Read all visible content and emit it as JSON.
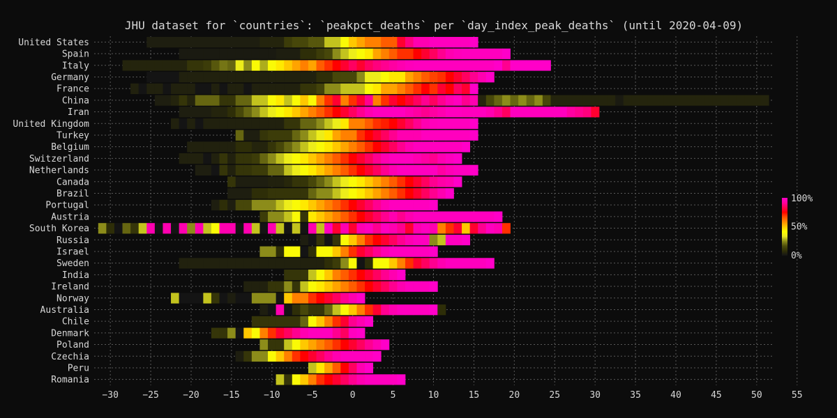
{
  "chart_data": {
    "type": "heatmap",
    "title": "JHU dataset for `countries`: `peakpct_deaths` per `day_index_peak_deaths` (until 2020-04-09)",
    "xlabel": "",
    "ylabel": "",
    "xlim": [
      -32,
      52
    ],
    "xticks": [
      -30,
      -25,
      -20,
      -15,
      -10,
      -5,
      0,
      5,
      10,
      15,
      20,
      25,
      30,
      35,
      40,
      45,
      50,
      55
    ],
    "grid": true,
    "legend": "colorbar-right",
    "colorbar": {
      "min_label": "0%",
      "mid_label": "50%",
      "max_label": "100%",
      "stops": [
        "#141414",
        "#2f2f08",
        "#4d4d0b",
        "#8c8c1a",
        "#e8e820",
        "#ffff00",
        "#ffc800",
        "#ff8c00",
        "#ff5000",
        "#ff0000",
        "#ff0050",
        "#ff00a0",
        "#ff00c8"
      ]
    },
    "colors": {
      "background": "#0c0c0c",
      "text": "#d8d8d8",
      "grid": "#5a5a5a"
    },
    "rows": [
      {
        "name": "United States",
        "start": -25,
        "values": [
          3,
          3,
          3,
          3,
          3,
          3,
          3,
          3,
          3,
          3,
          3,
          3,
          3,
          3,
          5,
          5,
          5,
          12,
          15,
          15,
          18,
          18,
          30,
          30,
          40,
          50,
          55,
          60,
          60,
          65,
          65,
          80,
          88,
          95,
          95,
          98,
          98,
          98,
          98,
          98,
          100
        ]
      },
      {
        "name": "Spain",
        "start": -21,
        "values": [
          2,
          2,
          2,
          2,
          2,
          2,
          2,
          2,
          2,
          2,
          2,
          2,
          3,
          3,
          3,
          8,
          8,
          12,
          15,
          25,
          30,
          35,
          40,
          45,
          55,
          60,
          65,
          70,
          70,
          75,
          80,
          85,
          90,
          95,
          97,
          98,
          98,
          98,
          98,
          98,
          100
        ]
      },
      {
        "name": "Italy",
        "start": -28,
        "values": [
          5,
          5,
          5,
          5,
          5,
          5,
          5,
          5,
          10,
          10,
          12,
          18,
          22,
          20,
          35,
          25,
          40,
          28,
          40,
          45,
          50,
          55,
          60,
          55,
          65,
          70,
          75,
          80,
          85,
          80,
          85,
          88,
          90,
          92,
          95,
          97,
          98,
          98,
          98,
          98,
          98,
          98,
          98,
          98,
          98,
          98,
          100,
          90,
          100,
          100,
          100,
          100,
          100
        ]
      },
      {
        "name": "Germany",
        "start": -25,
        "values": [
          0,
          0,
          0,
          0,
          4,
          4,
          4,
          4,
          4,
          4,
          4,
          4,
          4,
          4,
          4,
          4,
          4,
          4,
          4,
          4,
          4,
          8,
          8,
          15,
          15,
          15,
          25,
          35,
          35,
          40,
          45,
          45,
          55,
          60,
          65,
          68,
          70,
          75,
          80,
          85,
          90,
          95,
          100
        ]
      },
      {
        "name": "France",
        "start": -27,
        "values": [
          4,
          0,
          4,
          4,
          0,
          4,
          4,
          4,
          0,
          0,
          4,
          0,
          4,
          4,
          0,
          4,
          4,
          4,
          4,
          4,
          4,
          10,
          10,
          14,
          25,
          25,
          30,
          30,
          30,
          40,
          45,
          55,
          55,
          60,
          65,
          70,
          75,
          70,
          80,
          75,
          85,
          80,
          100
        ]
      },
      {
        "name": "China",
        "start": -24,
        "values": [
          3,
          3,
          5,
          10,
          5,
          20,
          20,
          20,
          10,
          10,
          20,
          20,
          30,
          30,
          40,
          45,
          30,
          40,
          50,
          40,
          60,
          70,
          80,
          60,
          70,
          80,
          90,
          60,
          70,
          80,
          75,
          80,
          85,
          90,
          85,
          90,
          95,
          98,
          90,
          95,
          5,
          15,
          20,
          25,
          20,
          25,
          20,
          25,
          15,
          5,
          5,
          5,
          5,
          5,
          5,
          5,
          5,
          2,
          5,
          5,
          5,
          5,
          5,
          5,
          5,
          5,
          5,
          5,
          5,
          5,
          5,
          5,
          5,
          5,
          5,
          5,
          5,
          5,
          5,
          5,
          5,
          5,
          5,
          5,
          5,
          5,
          2,
          5,
          5
        ]
      },
      {
        "name": "Iran",
        "start": -21,
        "values": [
          3,
          3,
          3,
          3,
          5,
          5,
          8,
          15,
          20,
          25,
          30,
          35,
          40,
          45,
          50,
          55,
          60,
          65,
          70,
          75,
          80,
          85,
          90,
          95,
          98,
          98,
          98,
          98,
          95,
          92,
          90,
          92,
          95,
          98,
          98,
          97,
          98,
          98,
          95,
          90,
          85,
          98,
          98,
          98,
          98,
          98,
          98,
          98,
          92,
          90,
          88,
          80
        ]
      },
      {
        "name": "United Kingdom",
        "start": -22,
        "values": [
          4,
          0,
          4,
          0,
          4,
          4,
          4,
          4,
          4,
          4,
          4,
          4,
          4,
          4,
          10,
          10,
          20,
          20,
          25,
          30,
          35,
          45,
          60,
          60,
          65,
          70,
          72,
          75,
          80,
          85,
          90,
          95,
          97,
          98,
          98,
          98,
          98,
          100
        ]
      },
      {
        "name": "Turkey",
        "start": -14,
        "values": [
          20,
          3,
          3,
          10,
          12,
          12,
          12,
          20,
          25,
          30,
          35,
          45,
          55,
          60,
          60,
          70,
          75,
          80,
          85,
          90,
          95,
          95,
          95,
          98,
          98,
          98,
          98,
          98,
          98,
          100
        ]
      },
      {
        "name": "Belgium",
        "start": -20,
        "values": [
          4,
          4,
          4,
          4,
          4,
          4,
          8,
          8,
          5,
          5,
          10,
          15,
          20,
          25,
          30,
          35,
          40,
          45,
          50,
          55,
          60,
          65,
          70,
          75,
          80,
          85,
          90,
          95,
          98,
          98,
          98,
          98,
          98,
          98,
          100
        ]
      },
      {
        "name": "Switzerland",
        "start": -21,
        "values": [
          4,
          4,
          4,
          0,
          4,
          10,
          4,
          10,
          10,
          12,
          20,
          25,
          30,
          35,
          40,
          45,
          50,
          55,
          60,
          65,
          70,
          75,
          80,
          85,
          90,
          95,
          98,
          98,
          98,
          95,
          92,
          90,
          95,
          98,
          100
        ]
      },
      {
        "name": "Netherlands",
        "start": -19,
        "values": [
          3,
          3,
          0,
          10,
          4,
          10,
          10,
          12,
          12,
          20,
          20,
          30,
          35,
          40,
          45,
          50,
          55,
          60,
          65,
          70,
          75,
          80,
          85,
          90,
          95,
          98,
          98,
          98,
          98,
          98,
          92,
          96,
          98,
          98,
          100
        ]
      },
      {
        "name": "Canada",
        "start": -15,
        "values": [
          10,
          3,
          3,
          3,
          3,
          4,
          4,
          6,
          10,
          10,
          15,
          20,
          25,
          30,
          35,
          40,
          45,
          50,
          55,
          60,
          65,
          70,
          75,
          80,
          85,
          90,
          93,
          95,
          100
        ]
      },
      {
        "name": "Brazil",
        "start": -15,
        "values": [
          3,
          3,
          3,
          8,
          8,
          10,
          10,
          10,
          10,
          10,
          20,
          25,
          25,
          30,
          35,
          40,
          45,
          50,
          55,
          60,
          65,
          70,
          75,
          80,
          85,
          90,
          95,
          100
        ]
      },
      {
        "name": "Portugal",
        "start": -17,
        "values": [
          3,
          8,
          3,
          15,
          15,
          25,
          25,
          25,
          30,
          35,
          40,
          45,
          50,
          55,
          60,
          65,
          70,
          75,
          80,
          85,
          90,
          95,
          98,
          98,
          98,
          98,
          98,
          100
        ]
      },
      {
        "name": "Austria",
        "start": -11,
        "values": [
          12,
          25,
          25,
          30,
          40,
          10,
          45,
          50,
          55,
          60,
          65,
          70,
          75,
          80,
          85,
          90,
          95,
          90,
          95,
          98,
          98,
          98,
          98,
          98,
          98,
          98,
          98,
          98,
          98,
          100
        ]
      },
      {
        "name": "South Korea",
        "start": -31,
        "values": [
          25,
          8,
          0,
          20,
          10,
          30,
          95,
          0,
          95,
          0,
          95,
          25,
          95,
          30,
          40,
          95,
          95,
          0,
          95,
          30,
          0,
          95,
          30,
          0,
          30,
          0,
          95,
          30,
          98,
          80,
          95,
          80,
          95,
          98,
          90,
          98,
          95,
          90,
          80,
          95,
          98,
          95,
          60,
          70,
          80,
          50,
          80,
          90,
          98,
          95,
          70
        ]
      },
      {
        "name": "Russia",
        "start": -6,
        "values": [
          3,
          0,
          10,
          0,
          10,
          40,
          50,
          60,
          70,
          75,
          80,
          85,
          90,
          95,
          98,
          98,
          25,
          30,
          98,
          98,
          100
        ]
      },
      {
        "name": "Israel",
        "start": -11,
        "values": [
          25,
          25,
          8,
          40,
          40,
          0,
          8,
          40,
          40,
          50,
          60,
          70,
          80,
          85,
          90,
          95,
          98,
          98,
          98,
          98,
          98,
          100
        ]
      },
      {
        "name": "Sweden",
        "start": -21,
        "values": [
          4,
          4,
          4,
          4,
          4,
          4,
          4,
          4,
          4,
          4,
          4,
          4,
          4,
          4,
          4,
          4,
          4,
          4,
          8,
          12,
          25,
          40,
          0,
          8,
          40,
          40,
          50,
          60,
          70,
          80,
          85,
          90,
          95,
          98,
          98,
          98,
          98,
          98,
          100
        ]
      },
      {
        "name": "India",
        "start": -8,
        "values": [
          10,
          10,
          10,
          30,
          40,
          50,
          60,
          65,
          70,
          75,
          80,
          85,
          90,
          95,
          100
        ]
      },
      {
        "name": "Ireland",
        "start": -13,
        "values": [
          4,
          4,
          4,
          10,
          10,
          25,
          10,
          30,
          40,
          45,
          50,
          55,
          60,
          65,
          70,
          75,
          80,
          85,
          90,
          95,
          98,
          98,
          98,
          100
        ]
      },
      {
        "name": "Norway",
        "start": -22,
        "values": [
          30,
          0,
          0,
          0,
          30,
          10,
          0,
          3,
          0,
          0,
          25,
          25,
          25,
          0,
          50,
          60,
          60,
          70,
          75,
          80,
          85,
          90,
          95,
          100
        ]
      },
      {
        "name": "Australia",
        "start": -11,
        "values": [
          3,
          0,
          95,
          0,
          8,
          15,
          10,
          10,
          20,
          30,
          40,
          50,
          60,
          70,
          80,
          90,
          95,
          98,
          98,
          98,
          98,
          100,
          8
        ]
      },
      {
        "name": "Chile",
        "start": -12,
        "values": [
          10,
          10,
          10,
          10,
          10,
          10,
          20,
          40,
          50,
          60,
          70,
          80,
          90,
          95,
          100
        ]
      },
      {
        "name": "Denmark",
        "start": -17,
        "values": [
          10,
          10,
          25,
          0,
          50,
          40,
          60,
          70,
          80,
          85,
          90,
          95,
          98,
          98,
          98,
          90,
          85,
          98,
          100
        ]
      },
      {
        "name": "Poland",
        "start": -11,
        "values": [
          25,
          10,
          10,
          30,
          40,
          50,
          55,
          60,
          65,
          70,
          75,
          80,
          85,
          90,
          95,
          100
        ]
      },
      {
        "name": "Czechia",
        "start": -14,
        "values": [
          3,
          10,
          25,
          25,
          40,
          50,
          60,
          70,
          75,
          80,
          85,
          90,
          95,
          98,
          98,
          98,
          98,
          100
        ]
      },
      {
        "name": "Peru",
        "start": -5,
        "values": [
          30,
          45,
          55,
          65,
          75,
          85,
          95,
          100
        ]
      },
      {
        "name": "Romania",
        "start": -9,
        "values": [
          30,
          10,
          40,
          50,
          60,
          70,
          75,
          80,
          85,
          90,
          95,
          98,
          98,
          98,
          98,
          100
        ]
      }
    ]
  }
}
